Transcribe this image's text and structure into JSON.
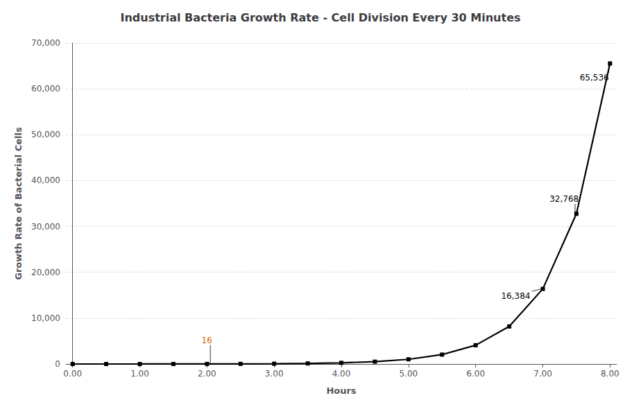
{
  "chart_data": {
    "type": "line",
    "title": "Industrial Bacteria Growth Rate - Cell Division Every 30 Minutes",
    "xlabel": "Hours",
    "ylabel": "Growth Rate of Bacterial Cells",
    "x": [
      0.0,
      0.5,
      1.0,
      1.5,
      2.0,
      2.5,
      3.0,
      3.5,
      4.0,
      4.5,
      5.0,
      5.5,
      6.0,
      6.5,
      7.0,
      7.5,
      8.0
    ],
    "values": [
      1,
      2,
      4,
      8,
      16,
      32,
      64,
      128,
      256,
      512,
      1024,
      2048,
      4096,
      8192,
      16384,
      32768,
      65536
    ],
    "color": "#000000",
    "marker": "square",
    "xlim": [
      -0.1,
      8.1
    ],
    "xticks": [
      {
        "value": 0,
        "label": "0.00"
      },
      {
        "value": 1,
        "label": "1.00"
      },
      {
        "value": 2,
        "label": "2.00"
      },
      {
        "value": 3,
        "label": "3.00"
      },
      {
        "value": 4,
        "label": "4.00"
      },
      {
        "value": 5,
        "label": "5.00"
      },
      {
        "value": 6,
        "label": "6.00"
      },
      {
        "value": 7,
        "label": "7.00"
      },
      {
        "value": 8,
        "label": "8.00"
      }
    ],
    "ylim": [
      0,
      70000
    ],
    "yticks": [
      0,
      {
        "value": 10000,
        "label": "10,000"
      },
      {
        "value": 20000,
        "label": "20,000"
      },
      {
        "value": 30000,
        "label": "30,000"
      },
      {
        "value": 40000,
        "label": "40,000"
      },
      {
        "value": 50000,
        "label": "50,000"
      },
      {
        "value": 60000,
        "label": "60,000"
      },
      {
        "value": 70000,
        "label": "70,000"
      }
    ],
    "grid": true,
    "annotations": [
      {
        "text": "16",
        "x": 2.05,
        "y": 80,
        "text_x": 1.92,
        "text_y": 5200,
        "color": "#cc6600"
      },
      {
        "text": "16,384",
        "x": 6.98,
        "y": 16384,
        "text_x": 6.38,
        "text_y": 14800,
        "color": "#000000"
      },
      {
        "text": "32,768",
        "x": 7.48,
        "y": 32768,
        "text_x": 7.1,
        "text_y": 36000,
        "color": "#000000"
      },
      {
        "text": "65,536",
        "x": 7.98,
        "y": 65536,
        "text_x": 7.55,
        "text_y": 62500,
        "color": "#000000"
      }
    ]
  }
}
